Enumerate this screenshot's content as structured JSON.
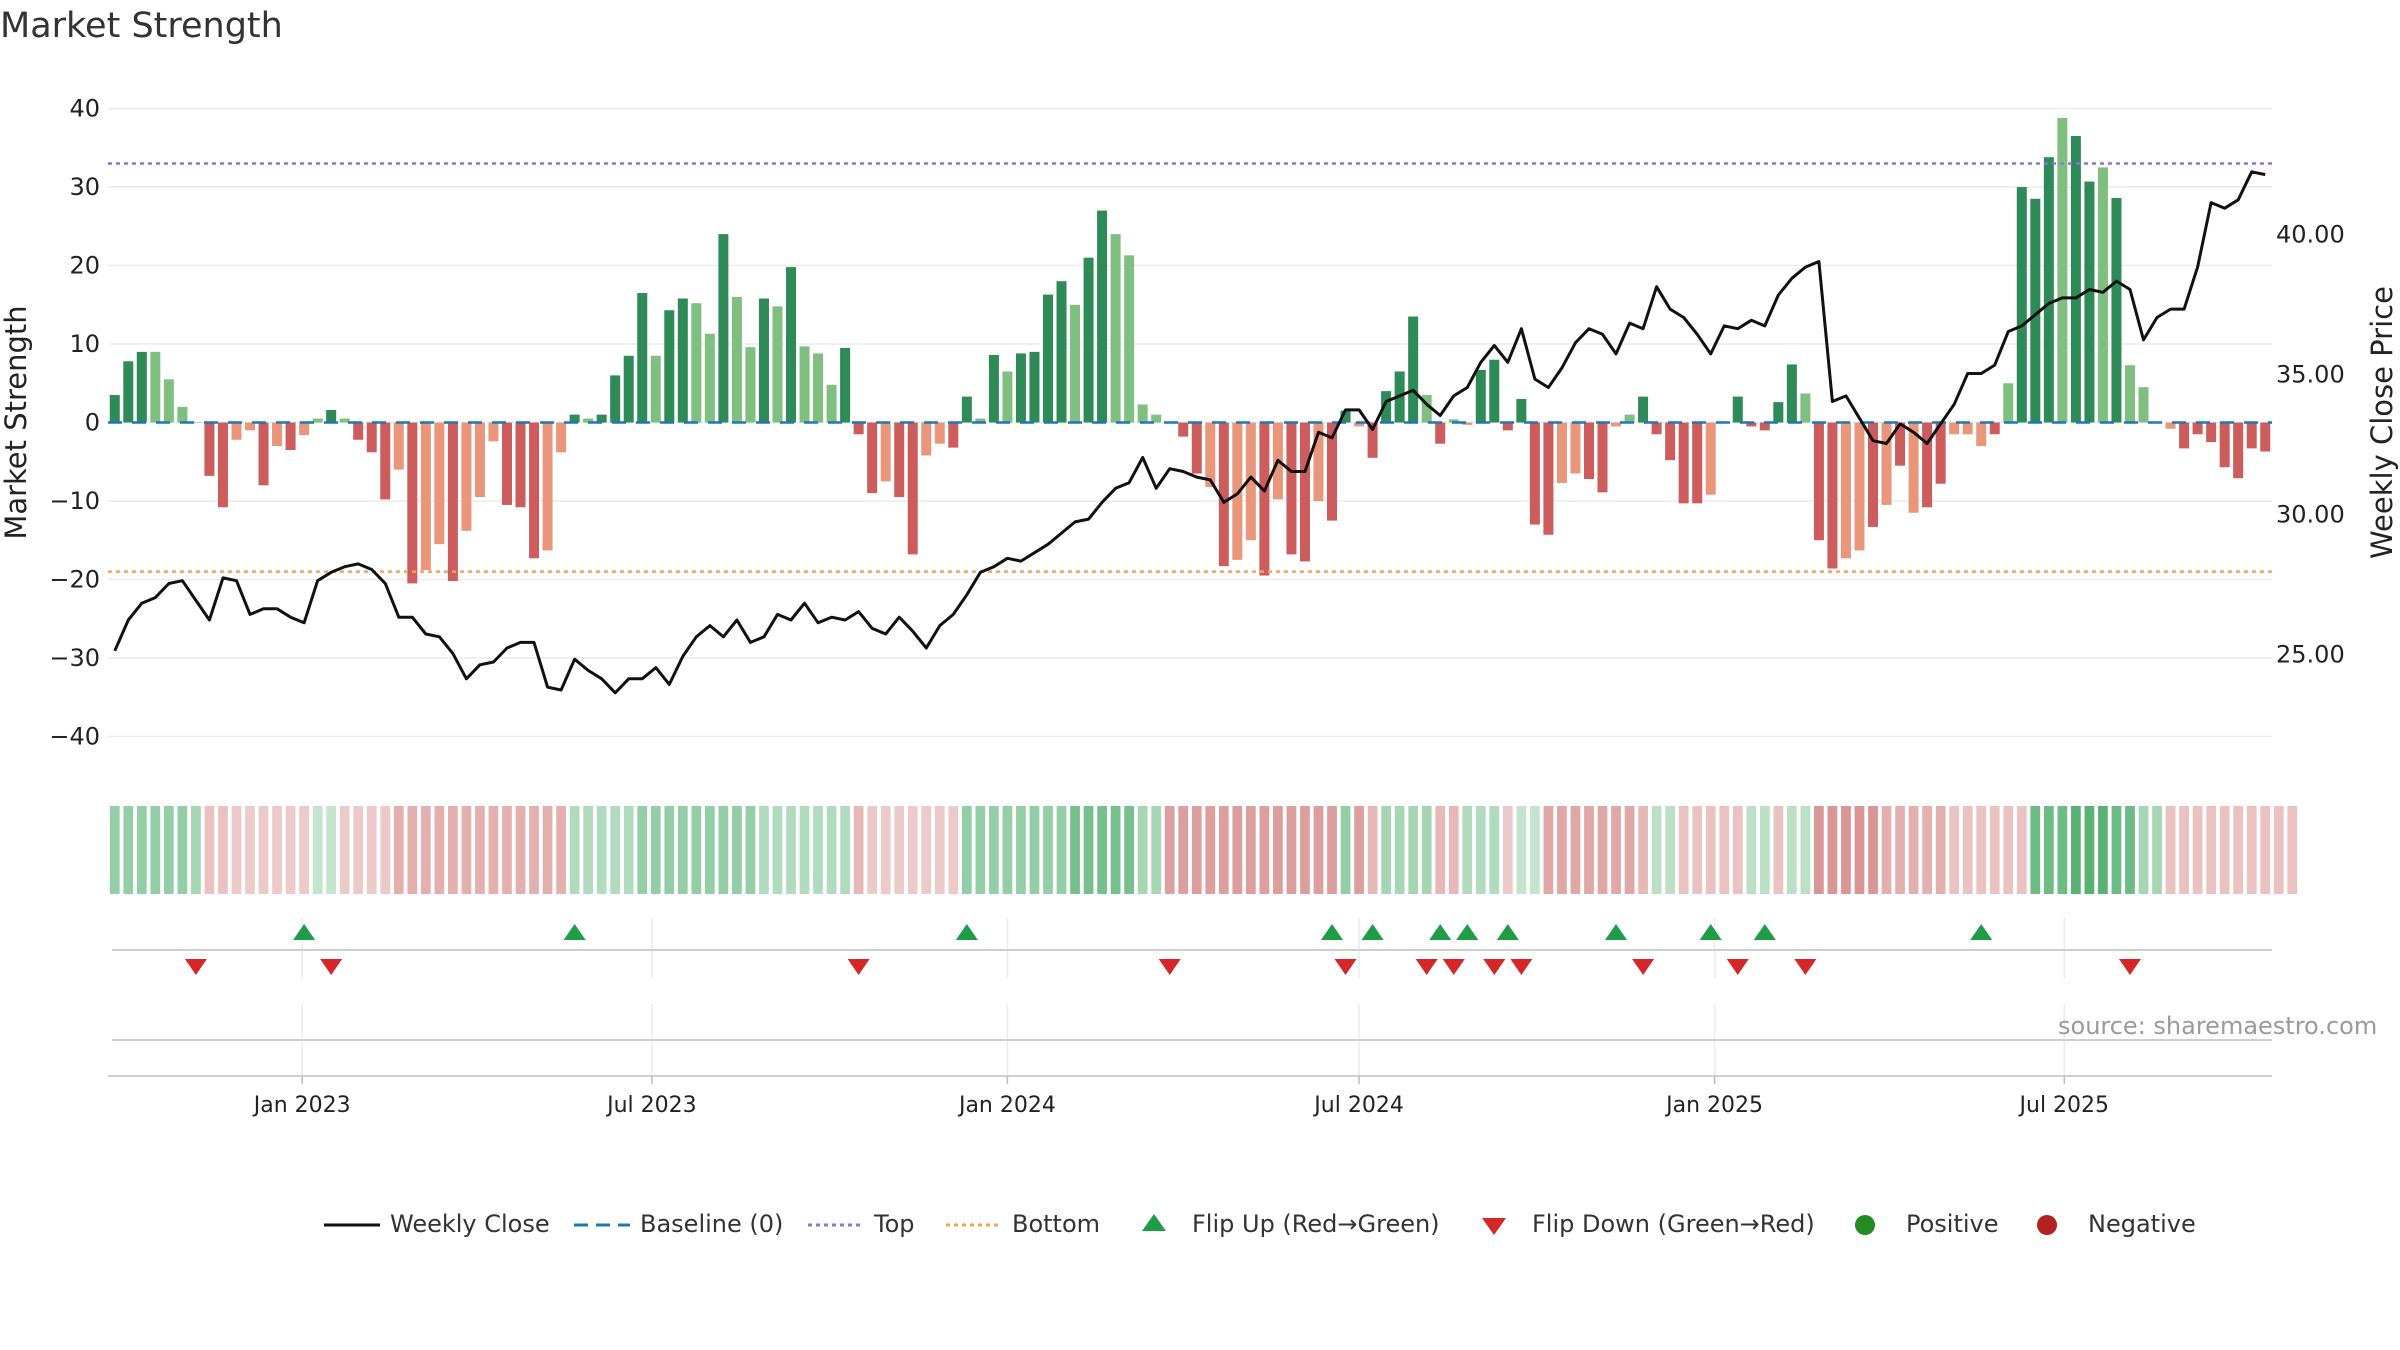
{
  "title": "Market Strength",
  "source_note": "source: sharemaestro.com",
  "colors": {
    "strong_green": "#2e8b57",
    "light_green": "#7fbf7f",
    "strong_red": "#cd5c5c",
    "light_red": "#e9967a",
    "line": "#111111",
    "top": "#9370db",
    "bottom": "#f4a460",
    "baseline": "#1f77b4",
    "flip_up": "#1e9c46",
    "flip_down": "#d62728",
    "positive": "#228b22",
    "negative": "#b22222"
  },
  "legend": [
    {
      "key": "line",
      "label": "Weekly Close"
    },
    {
      "key": "baseline",
      "label": "Baseline (0)"
    },
    {
      "key": "top",
      "label": "Top"
    },
    {
      "key": "bottom",
      "label": "Bottom"
    },
    {
      "key": "flip_up",
      "label": "Flip Up (Red→Green)"
    },
    {
      "key": "flip_down",
      "label": "Flip Down (Green→Red)"
    },
    {
      "key": "positive",
      "label": "Positive"
    },
    {
      "key": "negative",
      "label": "Negative"
    }
  ],
  "chart_data": {
    "type": "bar",
    "ylabel": "Market Strength",
    "y2label": "Weekly Close Price",
    "ylim": [
      -43,
      43
    ],
    "yticks": [
      40,
      30,
      20,
      10,
      0,
      -10,
      -20,
      -30,
      -40
    ],
    "y2lim": [
      21.2,
      45.3
    ],
    "y2ticks": [
      40.0,
      35.0,
      30.0,
      25.0
    ],
    "y2tick_labels": [
      "40.00",
      "35.00",
      "30.00",
      "25.00"
    ],
    "top_level": 33,
    "bottom_level": -19,
    "x_start": "2022-09-26",
    "x_ticks": [
      {
        "label": "Jan 2023",
        "date": "2023-01-01"
      },
      {
        "label": "Jul 2023",
        "date": "2023-07-01"
      },
      {
        "label": "Jan 2024",
        "date": "2024-01-01"
      },
      {
        "label": "Jul 2024",
        "date": "2024-07-01"
      },
      {
        "label": "Jan 2025",
        "date": "2025-01-01"
      },
      {
        "label": "Jul 2025",
        "date": "2025-07-01"
      }
    ],
    "strength": [
      3.5,
      7.8,
      9,
      9,
      5.5,
      2,
      0,
      -6.8,
      -10.8,
      -2.2,
      -1,
      -8,
      -3,
      -3.5,
      -1.6,
      0.5,
      1.6,
      0.5,
      -2.2,
      -3.8,
      -9.8,
      -6,
      -20.5,
      -18.8,
      -15.5,
      -20.2,
      -13.8,
      -9.5,
      -2.4,
      -10.5,
      -10.8,
      -17.3,
      -16.3,
      -3.8,
      1,
      0.5,
      1,
      6,
      8.5,
      16.5,
      8.5,
      14.3,
      15.8,
      15.2,
      11.3,
      24,
      16,
      9.6,
      15.8,
      14.8,
      19.8,
      9.7,
      8.8,
      4.8,
      9.5,
      -1.5,
      -9,
      -7.5,
      -9.5,
      -16.8,
      -4.2,
      -2.7,
      -3.2,
      3.3,
      0.5,
      8.6,
      6.5,
      8.8,
      9,
      16.3,
      18,
      15,
      21,
      27,
      24,
      21.3,
      2.3,
      1,
      0,
      -1.8,
      -6.5,
      -8.2,
      -18.3,
      -17.5,
      -15,
      -19.5,
      -9.8,
      -16.8,
      -17.7,
      -10,
      -12.5,
      1.5,
      -0.5,
      -4.5,
      4,
      6.5,
      13.5,
      3.5,
      -2.7,
      0.4,
      -0.3,
      6.7,
      8,
      -1,
      3,
      -13,
      -14.3,
      -7.7,
      -6.5,
      -7.2,
      -8.9,
      -0.5,
      1,
      3.3,
      -1.5,
      -4.8,
      -10.3,
      -10.3,
      -9.2,
      0,
      3.3,
      -0.5,
      -1,
      2.6,
      7.4,
      3.7,
      -15,
      -18.6,
      -17.3,
      -16.3,
      -13.3,
      -10.5,
      -5.5,
      -11.5,
      -10.8,
      -7.8,
      -1.5,
      -1.5,
      -3,
      -1.5,
      5,
      30,
      28.5,
      33.8,
      38.8,
      36.5,
      30.7,
      32.5,
      28.6,
      7.3,
      4.5,
      0,
      -0.8,
      -3.3,
      -1.5,
      -2.5,
      -5.7,
      -7.1,
      -3.3,
      -3.7
    ],
    "strength_intensity": [
      "strong",
      "strong",
      "strong",
      "light",
      "light",
      "light",
      "light",
      "strong",
      "strong",
      "light",
      "light",
      "strong",
      "light",
      "strong",
      "light",
      "light",
      "strong",
      "light",
      "strong",
      "strong",
      "strong",
      "light",
      "strong",
      "light",
      "light",
      "strong",
      "light",
      "light",
      "light",
      "strong",
      "strong",
      "strong",
      "light",
      "light",
      "strong",
      "light",
      "strong",
      "strong",
      "strong",
      "strong",
      "light",
      "strong",
      "strong",
      "light",
      "light",
      "strong",
      "light",
      "light",
      "strong",
      "light",
      "strong",
      "light",
      "light",
      "light",
      "strong",
      "strong",
      "strong",
      "light",
      "strong",
      "strong",
      "light",
      "light",
      "strong",
      "strong",
      "light",
      "strong",
      "light",
      "strong",
      "strong",
      "strong",
      "strong",
      "light",
      "strong",
      "strong",
      "light",
      "light",
      "light",
      "light",
      "light",
      "strong",
      "strong",
      "light",
      "strong",
      "light",
      "light",
      "strong",
      "light",
      "strong",
      "strong",
      "light",
      "strong",
      "strong",
      "light",
      "strong",
      "strong",
      "strong",
      "strong",
      "light",
      "strong",
      "light",
      "light",
      "strong",
      "strong",
      "strong",
      "strong",
      "strong",
      "strong",
      "light",
      "light",
      "strong",
      "strong",
      "light",
      "light",
      "strong",
      "strong",
      "strong",
      "strong",
      "strong",
      "light",
      "light",
      "strong",
      "strong",
      "strong",
      "strong",
      "strong",
      "light",
      "strong",
      "strong",
      "light",
      "light",
      "strong",
      "light",
      "strong",
      "light",
      "strong",
      "strong",
      "light",
      "light",
      "light",
      "strong",
      "light",
      "strong",
      "strong",
      "strong",
      "light",
      "strong",
      "strong",
      "light",
      "strong",
      "light",
      "light",
      "light",
      "light",
      "strong",
      "strong",
      "strong",
      "strong",
      "strong",
      "strong",
      "strong",
      "strong",
      "strong"
    ],
    "strength_shade": [
      0.42,
      0.42,
      0.42,
      0.42,
      0.42,
      0.42,
      0.42,
      0.42,
      0.42,
      0.3,
      0.3,
      0.3,
      0.3,
      0.3,
      0.3,
      0.25,
      0.25,
      0.3,
      0.3,
      0.3,
      0.3,
      0.45,
      0.45,
      0.45,
      0.45,
      0.45,
      0.45,
      0.45,
      0.45,
      0.45,
      0.45,
      0.45,
      0.45,
      0.45,
      0.35,
      0.35,
      0.35,
      0.35,
      0.35,
      0.55,
      0.55,
      0.55,
      0.55,
      0.55,
      0.55,
      0.55,
      0.55,
      0.55,
      0.4,
      0.4,
      0.4,
      0.4,
      0.4,
      0.4,
      0.4,
      0.4,
      0.3,
      0.3,
      0.3,
      0.3,
      0.3,
      0.3,
      0.3,
      0.3,
      0.55,
      0.55,
      0.55,
      0.55,
      0.55,
      0.55,
      0.55,
      0.7,
      0.7,
      0.7,
      0.7,
      0.7,
      0.45,
      0.45,
      0.55,
      0.55,
      0.55,
      0.55,
      0.55,
      0.55,
      0.55,
      0.55,
      0.55,
      0.55,
      0.55,
      0.55,
      0.55,
      0.55,
      0.55,
      0.4,
      0.4,
      0.4,
      0.55,
      0.55,
      0.55,
      0.55,
      0.4,
      0.4,
      0.4,
      0.4,
      0.3,
      0.3,
      0.3,
      0.5,
      0.5,
      0.5,
      0.5,
      0.5,
      0.5,
      0.5,
      0.35,
      0.35,
      0.35,
      0.35,
      0.35,
      0.35,
      0.35,
      0.35,
      0.35,
      0.35,
      0.35,
      0.35,
      0.35,
      0.35,
      0.35,
      0.6,
      0.6,
      0.6,
      0.6,
      0.6,
      0.45,
      0.45,
      0.45,
      0.45,
      0.45,
      0.35,
      0.35,
      0.35,
      0.35,
      0.35,
      0.35,
      0.75,
      0.75,
      0.75,
      0.85,
      0.85,
      0.85,
      0.75,
      0.75,
      0.45,
      0.45,
      0.35,
      0.35,
      0.35,
      0.35,
      0.35,
      0.35,
      0.35,
      0.35,
      0.35,
      0.35
    ],
    "weekly_close": [
      25.1,
      26.2,
      26.8,
      27.0,
      27.5,
      27.6,
      26.9,
      26.2,
      27.7,
      27.6,
      26.4,
      26.6,
      26.6,
      26.3,
      26.1,
      27.6,
      27.9,
      28.1,
      28.2,
      28.0,
      27.5,
      26.3,
      26.3,
      25.7,
      25.6,
      25.0,
      24.1,
      24.6,
      24.7,
      25.2,
      25.4,
      25.4,
      23.8,
      23.7,
      24.8,
      24.4,
      24.1,
      23.6,
      24.1,
      24.1,
      24.5,
      23.9,
      24.9,
      25.6,
      26.0,
      25.6,
      26.2,
      25.4,
      25.6,
      26.4,
      26.2,
      26.8,
      26.1,
      26.3,
      26.2,
      26.5,
      25.9,
      25.7,
      26.3,
      25.8,
      25.2,
      26.0,
      26.4,
      27.1,
      27.9,
      28.1,
      28.4,
      28.3,
      28.6,
      28.9,
      29.3,
      29.7,
      29.8,
      30.4,
      30.9,
      31.1,
      32.0,
      30.9,
      31.6,
      31.5,
      31.3,
      31.2,
      30.4,
      30.7,
      31.3,
      30.8,
      31.9,
      31.5,
      31.5,
      32.9,
      32.7,
      33.7,
      33.7,
      33.0,
      34.0,
      34.2,
      34.4,
      33.9,
      33.5,
      34.2,
      34.5,
      35.4,
      36.0,
      35.4,
      36.6,
      34.8,
      34.5,
      35.2,
      36.1,
      36.6,
      36.4,
      35.7,
      36.8,
      36.6,
      38.1,
      37.3,
      37.0,
      36.4,
      35.7,
      36.7,
      36.6,
      36.9,
      36.7,
      37.8,
      38.4,
      38.8,
      39.0,
      34.0,
      34.2,
      33.4,
      32.6,
      32.5,
      33.2,
      32.9,
      32.5,
      33.2,
      33.9,
      35.0,
      35.0,
      35.3,
      36.5,
      36.7,
      37.1,
      37.5,
      37.7,
      37.7,
      38.0,
      37.9,
      38.3,
      38.0,
      36.2,
      37.0,
      37.3,
      37.3,
      38.8,
      41.1,
      40.9,
      41.2,
      42.2,
      42.1
    ],
    "band_values": [
      0.55,
      0.55,
      0.55,
      0.55,
      0.55,
      0.55,
      0.45,
      -0.35,
      -0.35,
      -0.3,
      -0.3,
      -0.3,
      -0.3,
      -0.3,
      -0.3,
      0.3,
      0.3,
      -0.3,
      -0.3,
      -0.3,
      -0.3,
      -0.45,
      -0.45,
      -0.45,
      -0.45,
      -0.45,
      -0.45,
      -0.45,
      -0.45,
      -0.45,
      -0.45,
      -0.45,
      -0.45,
      -0.45,
      0.4,
      0.4,
      0.4,
      0.4,
      0.4,
      0.55,
      0.55,
      0.55,
      0.55,
      0.55,
      0.55,
      0.55,
      0.55,
      0.55,
      0.4,
      0.4,
      0.4,
      0.4,
      0.4,
      0.4,
      0.4,
      -0.4,
      -0.3,
      -0.3,
      -0.3,
      -0.3,
      -0.3,
      -0.3,
      -0.3,
      0.55,
      0.55,
      0.55,
      0.55,
      0.55,
      0.55,
      0.55,
      0.55,
      0.7,
      0.7,
      0.7,
      0.7,
      0.7,
      0.45,
      0.45,
      -0.55,
      -0.55,
      -0.55,
      -0.55,
      -0.55,
      -0.55,
      -0.55,
      -0.55,
      -0.55,
      -0.55,
      -0.55,
      -0.55,
      -0.55,
      0.55,
      -0.55,
      -0.4,
      0.45,
      0.45,
      0.45,
      0.45,
      -0.4,
      -0.4,
      0.4,
      0.4,
      0.4,
      -0.3,
      0.3,
      0.3,
      -0.5,
      -0.5,
      -0.5,
      -0.5,
      -0.5,
      -0.5,
      -0.5,
      -0.4,
      0.35,
      0.35,
      -0.35,
      -0.35,
      -0.35,
      -0.35,
      -0.35,
      0.35,
      0.35,
      -0.35,
      0.35,
      0.35,
      -0.6,
      -0.6,
      -0.6,
      -0.6,
      -0.6,
      -0.45,
      -0.45,
      -0.45,
      -0.45,
      -0.45,
      -0.35,
      -0.35,
      -0.35,
      -0.35,
      -0.35,
      -0.35,
      0.75,
      0.75,
      0.75,
      0.85,
      0.85,
      0.85,
      0.75,
      0.75,
      0.45,
      0.45,
      -0.35,
      -0.35,
      -0.35,
      -0.35,
      -0.35,
      -0.35,
      -0.35,
      -0.35,
      -0.35,
      -0.35
    ],
    "flip_up_weeks": [
      14,
      34,
      63,
      90,
      93,
      98,
      100,
      103,
      111,
      118,
      122,
      138
    ],
    "flip_down_weeks": [
      6,
      16,
      55,
      78,
      91,
      97,
      99,
      102,
      104,
      113,
      120,
      125,
      149
    ]
  }
}
